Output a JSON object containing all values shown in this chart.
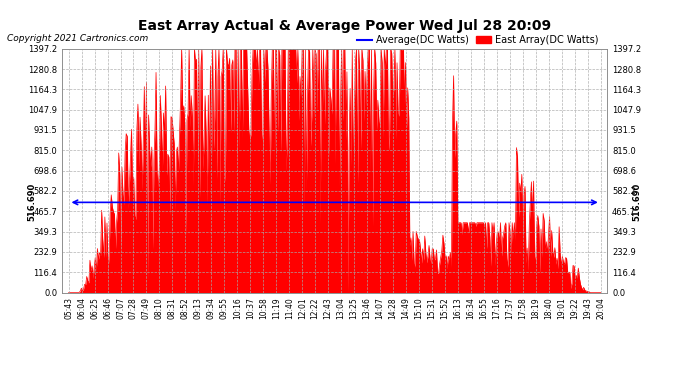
{
  "title": "East Array Actual & Average Power Wed Jul 28 20:09",
  "copyright": "Copyright 2021 Cartronics.com",
  "legend_avg": "Average(DC Watts)",
  "legend_east": "East Array(DC Watts)",
  "average_value": 516.69,
  "avg_label": "516.690",
  "y_ticks": [
    0.0,
    116.4,
    232.9,
    349.3,
    465.7,
    582.2,
    698.6,
    815.0,
    931.5,
    1047.9,
    1164.3,
    1280.8,
    1397.2
  ],
  "x_labels": [
    "05:43",
    "06:04",
    "06:25",
    "06:46",
    "07:07",
    "07:28",
    "07:49",
    "08:10",
    "08:31",
    "08:52",
    "09:13",
    "09:34",
    "09:55",
    "10:16",
    "10:37",
    "10:58",
    "11:19",
    "11:40",
    "12:01",
    "12:22",
    "12:43",
    "13:04",
    "13:25",
    "13:46",
    "14:07",
    "14:28",
    "14:49",
    "15:10",
    "15:31",
    "15:52",
    "16:13",
    "16:34",
    "16:55",
    "17:16",
    "17:37",
    "17:58",
    "18:19",
    "18:40",
    "19:01",
    "19:22",
    "19:43",
    "20:04"
  ],
  "bg_color": "#ffffff",
  "fill_color": "#ff0000",
  "line_color": "#ff0000",
  "avg_line_color": "#0000ff",
  "grid_color": "#aaaaaa",
  "title_color": "#000000",
  "ymin": 0.0,
  "ymax": 1397.2,
  "title_fontsize": 10,
  "copyright_fontsize": 6.5,
  "tick_fontsize": 6,
  "legend_fontsize": 7
}
